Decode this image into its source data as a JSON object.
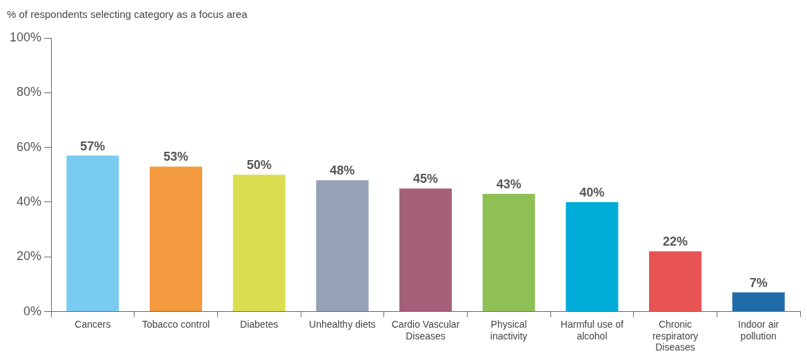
{
  "chart_data": {
    "type": "bar",
    "ylabel": "% of respondents selecting category as a focus area",
    "categories": [
      "Cancers",
      "Tobacco control",
      "Diabetes",
      "Unhealthy diets",
      "Cardio Vascular Diseases",
      "Physical inactivity",
      "Harmful use of alcohol",
      "Chronic respiratory Diseases",
      "Indoor air pollution"
    ],
    "values": [
      57,
      53,
      50,
      48,
      45,
      43,
      40,
      22,
      7
    ],
    "value_labels": [
      "57%",
      "53%",
      "50%",
      "48%",
      "45%",
      "43%",
      "40%",
      "22%",
      "7%"
    ],
    "colors": [
      "#7acbf0",
      "#f39a3e",
      "#d9dd4f",
      "#95a2b5",
      "#a56079",
      "#8fc055",
      "#00acd8",
      "#e85353",
      "#206ca8"
    ],
    "ylim": [
      0,
      100
    ],
    "yticks": [
      {
        "value": 0,
        "label": "0%"
      },
      {
        "value": 20,
        "label": "20%"
      },
      {
        "value": 40,
        "label": "40%"
      },
      {
        "value": 60,
        "label": "60%"
      },
      {
        "value": 80,
        "label": "80%"
      },
      {
        "value": 100,
        "label": "100%"
      }
    ],
    "legend": false
  }
}
